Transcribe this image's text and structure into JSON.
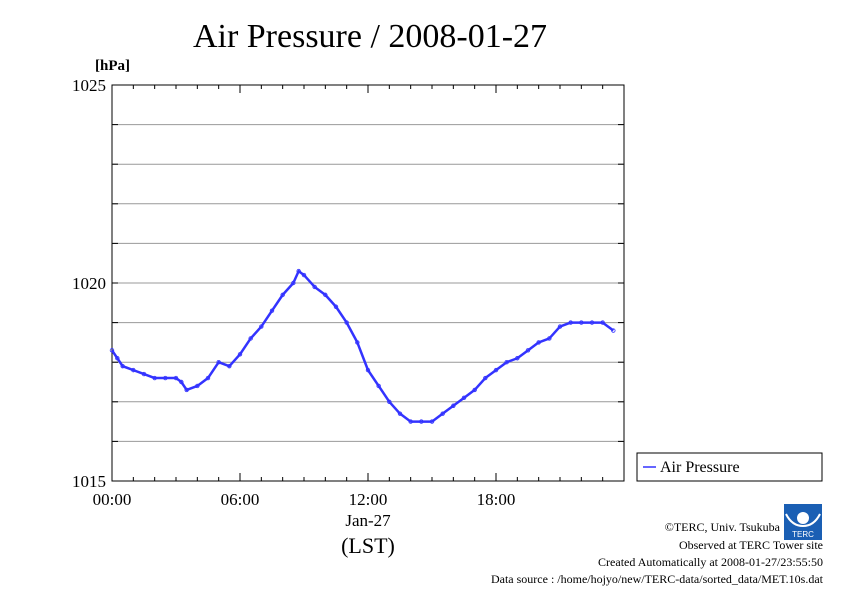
{
  "chart_data": {
    "type": "line",
    "title": "Air Pressure / 2008-01-27",
    "ylabel_unit": "[hPa]",
    "ylim": [
      1015,
      1025
    ],
    "y_ticks": [
      "1015",
      "1020",
      "1025"
    ],
    "y_grid_step": 1,
    "xlim_hours": [
      0,
      24
    ],
    "x_ticks": [
      "00:00",
      "06:00",
      "12:00",
      "18:00"
    ],
    "x_date_label": "Jan-27",
    "x_timezone_label": "(LST)",
    "grid": true,
    "legend_position": "right-bottom",
    "series": [
      {
        "name": "Air Pressure",
        "color": "#3333ff",
        "x_hours": [
          0,
          0.25,
          0.5,
          1.0,
          1.5,
          2.0,
          2.5,
          3.0,
          3.25,
          3.5,
          4.0,
          4.5,
          5.0,
          5.5,
          6.0,
          6.5,
          7.0,
          7.5,
          8.0,
          8.5,
          8.75,
          9.0,
          9.5,
          10.0,
          10.5,
          11.0,
          11.5,
          12.0,
          12.5,
          13.0,
          13.5,
          14.0,
          14.5,
          15.0,
          15.5,
          16.0,
          16.5,
          17.0,
          17.5,
          18.0,
          18.5,
          19.0,
          19.5,
          20.0,
          20.5,
          21.0,
          21.5,
          22.0,
          22.5,
          23.0,
          23.5
        ],
        "values": [
          1018.3,
          1018.1,
          1017.9,
          1017.8,
          1017.7,
          1017.6,
          1017.6,
          1017.6,
          1017.5,
          1017.3,
          1017.4,
          1017.6,
          1018.0,
          1017.9,
          1018.2,
          1018.6,
          1018.9,
          1019.3,
          1019.7,
          1020.0,
          1020.3,
          1020.2,
          1019.9,
          1019.7,
          1019.4,
          1019.0,
          1018.5,
          1017.8,
          1017.4,
          1017.0,
          1016.7,
          1016.5,
          1016.5,
          1016.5,
          1016.7,
          1016.9,
          1017.1,
          1017.3,
          1017.6,
          1017.8,
          1018.0,
          1018.1,
          1018.3,
          1018.5,
          1018.6,
          1018.9,
          1019.0,
          1019.0,
          1019.0,
          1019.0,
          1018.8
        ]
      }
    ]
  },
  "footer": {
    "copyright": "©TERC, Univ. Tsukuba",
    "site": "Observed at TERC Tower site",
    "created": "Created Automatically at 2008-01-27/23:55:50",
    "source": "Data source : /home/hojyo/new/TERC-data/sorted_data/MET.10s.dat",
    "logo_text": "TERC"
  }
}
